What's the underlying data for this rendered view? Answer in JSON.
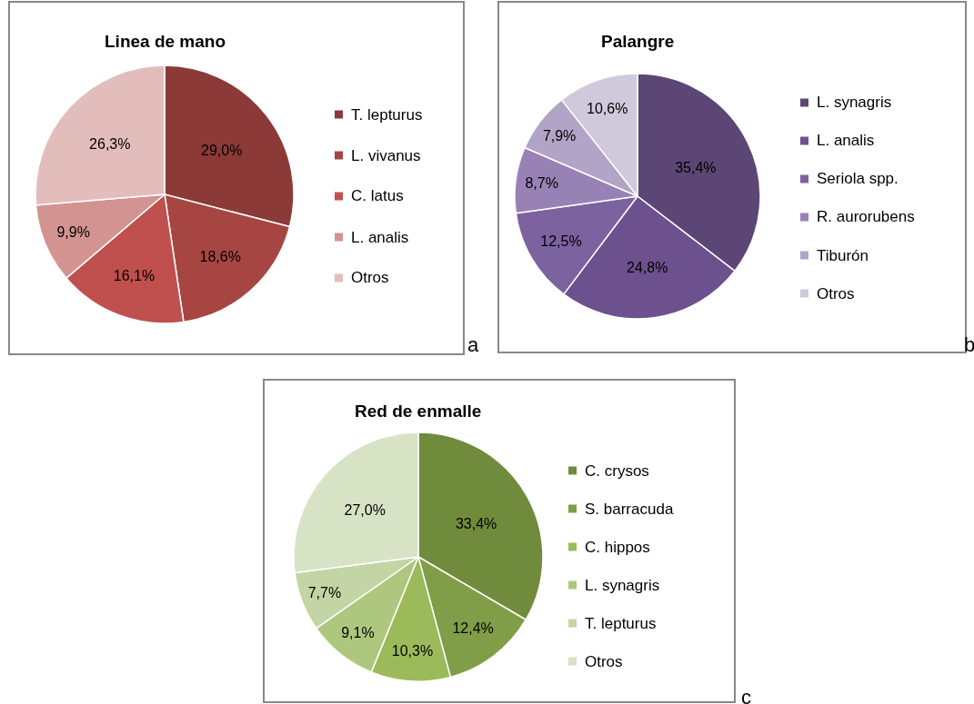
{
  "chart_data": [
    {
      "type": "pie",
      "title": "Linea de mano",
      "categories": [
        "T. lepturus",
        "L. vivanus",
        "C. latus",
        "L. analis",
        "Otros"
      ],
      "values": [
        29.0,
        18.6,
        16.1,
        9.9,
        26.3
      ],
      "value_labels": [
        "29,0%",
        "18,6%",
        "16,1%",
        "9,9%",
        "26,3%"
      ],
      "colors": [
        "#8c3a37",
        "#a74542",
        "#c0504d",
        "#d39391",
        "#e3bcbc"
      ],
      "legend": "right",
      "annotations": [
        "a"
      ]
    },
    {
      "type": "pie",
      "title": "Palangre",
      "categories": [
        "L. synagris",
        "L. analis",
        "Seriola spp.",
        "R. aurorubens",
        "Tiburón",
        "Otros"
      ],
      "values": [
        35.4,
        24.8,
        12.5,
        8.7,
        7.9,
        10.6
      ],
      "value_labels": [
        "35,4%",
        "24,8%",
        "12,5%",
        "8,7%",
        "7,9%",
        "10,6%"
      ],
      "colors": [
        "#5c4675",
        "#6c518e",
        "#7d62a0",
        "#9882b5",
        "#b1a4c7",
        "#d0c9dc"
      ],
      "legend": "right",
      "annotations": [
        "b"
      ]
    },
    {
      "type": "pie",
      "title": "Red de enmalle",
      "categories": [
        "C. crysos",
        "S. barracuda",
        "C. hippos",
        "L. synagris",
        "T. lepturus",
        "Otros"
      ],
      "values": [
        33.4,
        12.4,
        10.3,
        9.1,
        7.7,
        27.0
      ],
      "value_labels": [
        "33,4%",
        "12,4%",
        "10,3%",
        "9,1%",
        "7,7%",
        "27,0%"
      ],
      "colors": [
        "#718b3c",
        "#809e48",
        "#9bba59",
        "#aec77e",
        "#c3d5a4",
        "#d8e2c5"
      ],
      "legend": "right",
      "annotations": [
        "c"
      ]
    }
  ]
}
